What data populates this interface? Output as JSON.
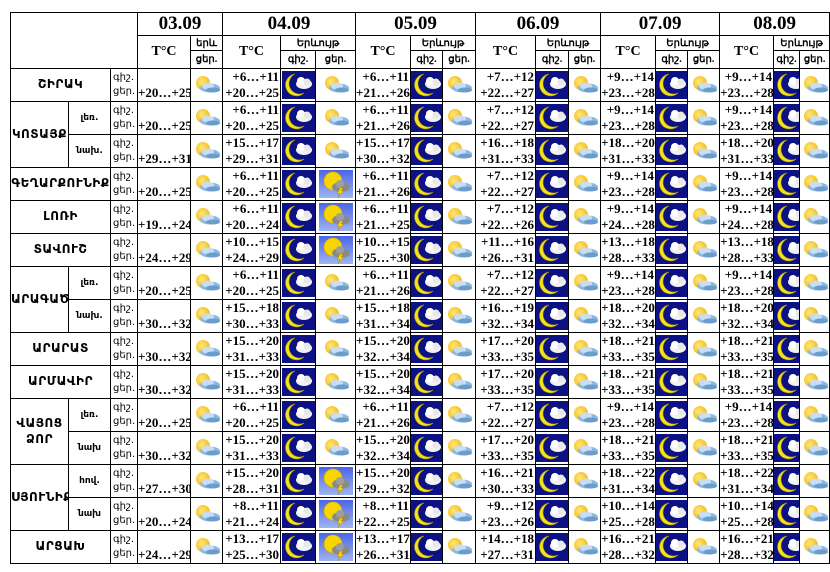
{
  "header": {
    "dates": [
      "03.09",
      "04.09",
      "05.09",
      "06.09",
      "07.09",
      "08.09"
    ],
    "temp_label": "T°C",
    "phenomenon_label": "Երևույթ",
    "phenomenon_label_short": "երև",
    "night_label": "գիշ.",
    "day_label": "ցեր."
  },
  "row_labels": {
    "night": "գիշ.",
    "day": "ցեր."
  },
  "icons": {
    "night": "moon-cloud-icon",
    "day": "sun-cloud-icon",
    "storm": "sun-thunderstorm-icon"
  },
  "regions": [
    {
      "name": "ՇԻՐԱԿ",
      "subs": [
        {
          "label": "",
          "d03": "+20…+25",
          "days": [
            [
              "+6…+11",
              "+20…+25",
              "day"
            ],
            [
              "+6…+11",
              "+21…+26",
              "day"
            ],
            [
              "+7…+12",
              "+22…+27",
              "day"
            ],
            [
              "+9…+14",
              "+23…+28",
              "day"
            ],
            [
              "+9…+14",
              "+23…+28",
              "day"
            ]
          ]
        }
      ]
    },
    {
      "name": "ԿՈՏԱՅՔ",
      "subs": [
        {
          "label": "լեռ.",
          "d03": "+20…+25",
          "days": [
            [
              "+6…+11",
              "+20…+25",
              "day"
            ],
            [
              "+6…+11",
              "+21…+26",
              "day"
            ],
            [
              "+7…+12",
              "+22…+27",
              "day"
            ],
            [
              "+9…+14",
              "+23…+28",
              "day"
            ],
            [
              "+9…+14",
              "+23…+28",
              "day"
            ]
          ]
        },
        {
          "label": "նախ.",
          "d03": "+29…+31",
          "days": [
            [
              "+15…+17",
              "+29…+31",
              "day"
            ],
            [
              "+15…+17",
              "+30…+32",
              "day"
            ],
            [
              "+16…+18",
              "+31…+33",
              "day"
            ],
            [
              "+18…+20",
              "+31…+33",
              "day"
            ],
            [
              "+18…+20",
              "+31…+33",
              "day"
            ]
          ]
        }
      ]
    },
    {
      "name": "ԳԵՂԱՐՔՈՒՆԻՔ",
      "subs": [
        {
          "label": "",
          "d03": "+20…+25",
          "days": [
            [
              "+6…+11",
              "+20…+25",
              "storm"
            ],
            [
              "+6…+11",
              "+21…+26",
              "day"
            ],
            [
              "+7…+12",
              "+22…+27",
              "day"
            ],
            [
              "+9…+14",
              "+23…+28",
              "day"
            ],
            [
              "+9…+14",
              "+23…+28",
              "day"
            ]
          ]
        }
      ]
    },
    {
      "name": "ԼՈՌԻ",
      "subs": [
        {
          "label": "",
          "d03": "+19…+24",
          "days": [
            [
              "+6…+11",
              "+20…+24",
              "storm"
            ],
            [
              "+6…+11",
              "+21…+25",
              "day"
            ],
            [
              "+7…+12",
              "+22…+26",
              "day"
            ],
            [
              "+9…+14",
              "+24…+28",
              "day"
            ],
            [
              "+9…+14",
              "+24…+28",
              "day"
            ]
          ]
        }
      ]
    },
    {
      "name": "ՏԱՎՈՒՇ",
      "subs": [
        {
          "label": "",
          "d03": "+24…+29",
          "days": [
            [
              "+10…+15",
              "+24…+29",
              "storm"
            ],
            [
              "+10…+15",
              "+25…+30",
              "day"
            ],
            [
              "+11…+16",
              "+26…+31",
              "day"
            ],
            [
              "+13…+18",
              "+28…+33",
              "day"
            ],
            [
              "+13…+18",
              "+28…+33",
              "day"
            ]
          ]
        }
      ]
    },
    {
      "name": "ԱՐԱԳԱԾՈՏՆ",
      "subs": [
        {
          "label": "լեռ.",
          "d03": "+20…+25",
          "days": [
            [
              "+6…+11",
              "+20…+25",
              "day"
            ],
            [
              "+6…+11",
              "+21…+26",
              "day"
            ],
            [
              "+7…+12",
              "+22…+27",
              "day"
            ],
            [
              "+9…+14",
              "+23…+28",
              "day"
            ],
            [
              "+9…+14",
              "+23…+28",
              "day"
            ]
          ]
        },
        {
          "label": "նախ.",
          "d03": "+30…+32",
          "days": [
            [
              "+15…+18",
              "+30…+33",
              "day"
            ],
            [
              "+15…+18",
              "+31…+34",
              "day"
            ],
            [
              "+16…+19",
              "+32…+34",
              "day"
            ],
            [
              "+18…+20",
              "+32…+34",
              "day"
            ],
            [
              "+18…+20",
              "+32…+34",
              "day"
            ]
          ]
        }
      ]
    },
    {
      "name": "ԱՐԱՐԱՏ",
      "subs": [
        {
          "label": "",
          "d03": "+30…+32",
          "days": [
            [
              "+15…+20",
              "+31…+33",
              "day"
            ],
            [
              "+15…+20",
              "+32…+34",
              "day"
            ],
            [
              "+17…+20",
              "+33…+35",
              "day"
            ],
            [
              "+18…+21",
              "+33…+35",
              "day"
            ],
            [
              "+18…+21",
              "+33…+35",
              "day"
            ]
          ]
        }
      ]
    },
    {
      "name": "ԱՐՄԱՎԻՐ",
      "subs": [
        {
          "label": "",
          "d03": "+30…+32",
          "days": [
            [
              "+15…+20",
              "+31…+33",
              "day"
            ],
            [
              "+15…+20",
              "+32…+34",
              "day"
            ],
            [
              "+17…+20",
              "+33…+35",
              "day"
            ],
            [
              "+18…+21",
              "+33…+35",
              "day"
            ],
            [
              "+18…+21",
              "+33…+35",
              "day"
            ]
          ]
        }
      ]
    },
    {
      "name": "ՎԱՅՈՑ ՁՈՐ",
      "subs": [
        {
          "label": "լեռ.",
          "d03": "+20…+25",
          "days": [
            [
              "+6…+11",
              "+20…+25",
              "day"
            ],
            [
              "+6…+11",
              "+21…+26",
              "day"
            ],
            [
              "+7…+12",
              "+22…+27",
              "day"
            ],
            [
              "+9…+14",
              "+23…+28",
              "day"
            ],
            [
              "+9…+14",
              "+23…+28",
              "day"
            ]
          ]
        },
        {
          "label": "նախ",
          "d03": "+30…+32",
          "days": [
            [
              "+15…+20",
              "+31…+33",
              "day"
            ],
            [
              "+15…+20",
              "+32…+34",
              "day"
            ],
            [
              "+17…+20",
              "+33…+35",
              "day"
            ],
            [
              "+18…+21",
              "+33…+35",
              "day"
            ],
            [
              "+18…+21",
              "+33…+35",
              "day"
            ]
          ]
        }
      ]
    },
    {
      "name": "ՍՅՈՒՆԻՔ",
      "subs": [
        {
          "label": "հով.",
          "d03": "+27…+30",
          "days": [
            [
              "+15…+20",
              "+28…+31",
              "storm"
            ],
            [
              "+15…+20",
              "+29…+32",
              "day"
            ],
            [
              "+16…+21",
              "+30…+33",
              "day"
            ],
            [
              "+18…+22",
              "+31…+34",
              "day"
            ],
            [
              "+18…+22",
              "+31…+34",
              "day"
            ]
          ]
        },
        {
          "label": "նախ",
          "d03": "+20…+24",
          "days": [
            [
              "+8…+11",
              "+21…+24",
              "storm"
            ],
            [
              "+8…+11",
              "+22…+25",
              "day"
            ],
            [
              "+9…+12",
              "+23…+26",
              "day"
            ],
            [
              "+10…+14",
              "+25…+28",
              "day"
            ],
            [
              "+10…+14",
              "+25…+28",
              "day"
            ]
          ]
        }
      ]
    },
    {
      "name": "ԱՐՑԱԽ",
      "subs": [
        {
          "label": "",
          "d03": "+24…+29",
          "days": [
            [
              "+13…+17",
              "+25…+30",
              "storm"
            ],
            [
              "+13…+17",
              "+26…+31",
              "day"
            ],
            [
              "+14…+18",
              "+27…+31",
              "day"
            ],
            [
              "+16…+21",
              "+28…+32",
              "day"
            ],
            [
              "+16…+21",
              "+28…+32",
              "day"
            ]
          ]
        }
      ]
    }
  ]
}
